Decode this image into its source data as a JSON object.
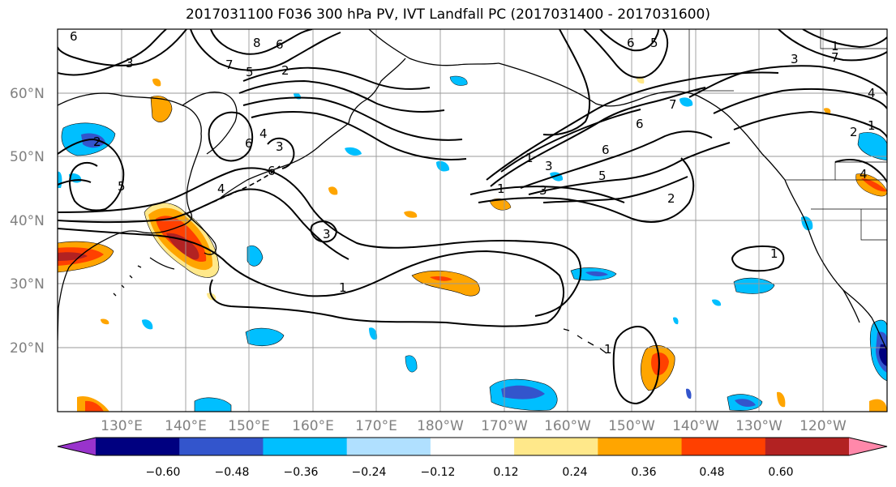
{
  "title": "2017031100 F036 300 hPa PV, IVT Landfall PC (2017031400 - 2017031600)",
  "lat_labels": [
    "60°N",
    "50°N",
    "40°N",
    "30°N",
    "20°N"
  ],
  "lon_labels": [
    "130°E",
    "140°E",
    "150°E",
    "160°E",
    "170°E",
    "180°W",
    "170°W",
    "160°W",
    "150°W",
    "140°W",
    "130°W",
    "120°W"
  ],
  "colorbar": {
    "tick_labels": [
      "−0.60",
      "−0.48",
      "−0.36",
      "−0.24",
      "−0.12",
      "0.12",
      "0.24",
      "0.36",
      "0.48",
      "0.60"
    ],
    "colors": [
      "#9933cc",
      "#000080",
      "#3355cc",
      "#00bfff",
      "#b0e0ff",
      "#ffffff",
      "#ffe88a",
      "#ffa500",
      "#ff4000",
      "#b22222",
      "#ff88aa"
    ]
  },
  "contour_labels": [
    "6",
    "8",
    "6",
    "7",
    "5",
    "2",
    "6",
    "3",
    "4",
    "1",
    "2",
    "6",
    "4",
    "3",
    "5",
    "3",
    "3",
    "6",
    "5",
    "1",
    "3",
    "1",
    "6",
    "5",
    "7",
    "6",
    "1",
    "2",
    "4",
    "1",
    "3",
    "2",
    "7",
    "1",
    "4",
    "1"
  ]
}
